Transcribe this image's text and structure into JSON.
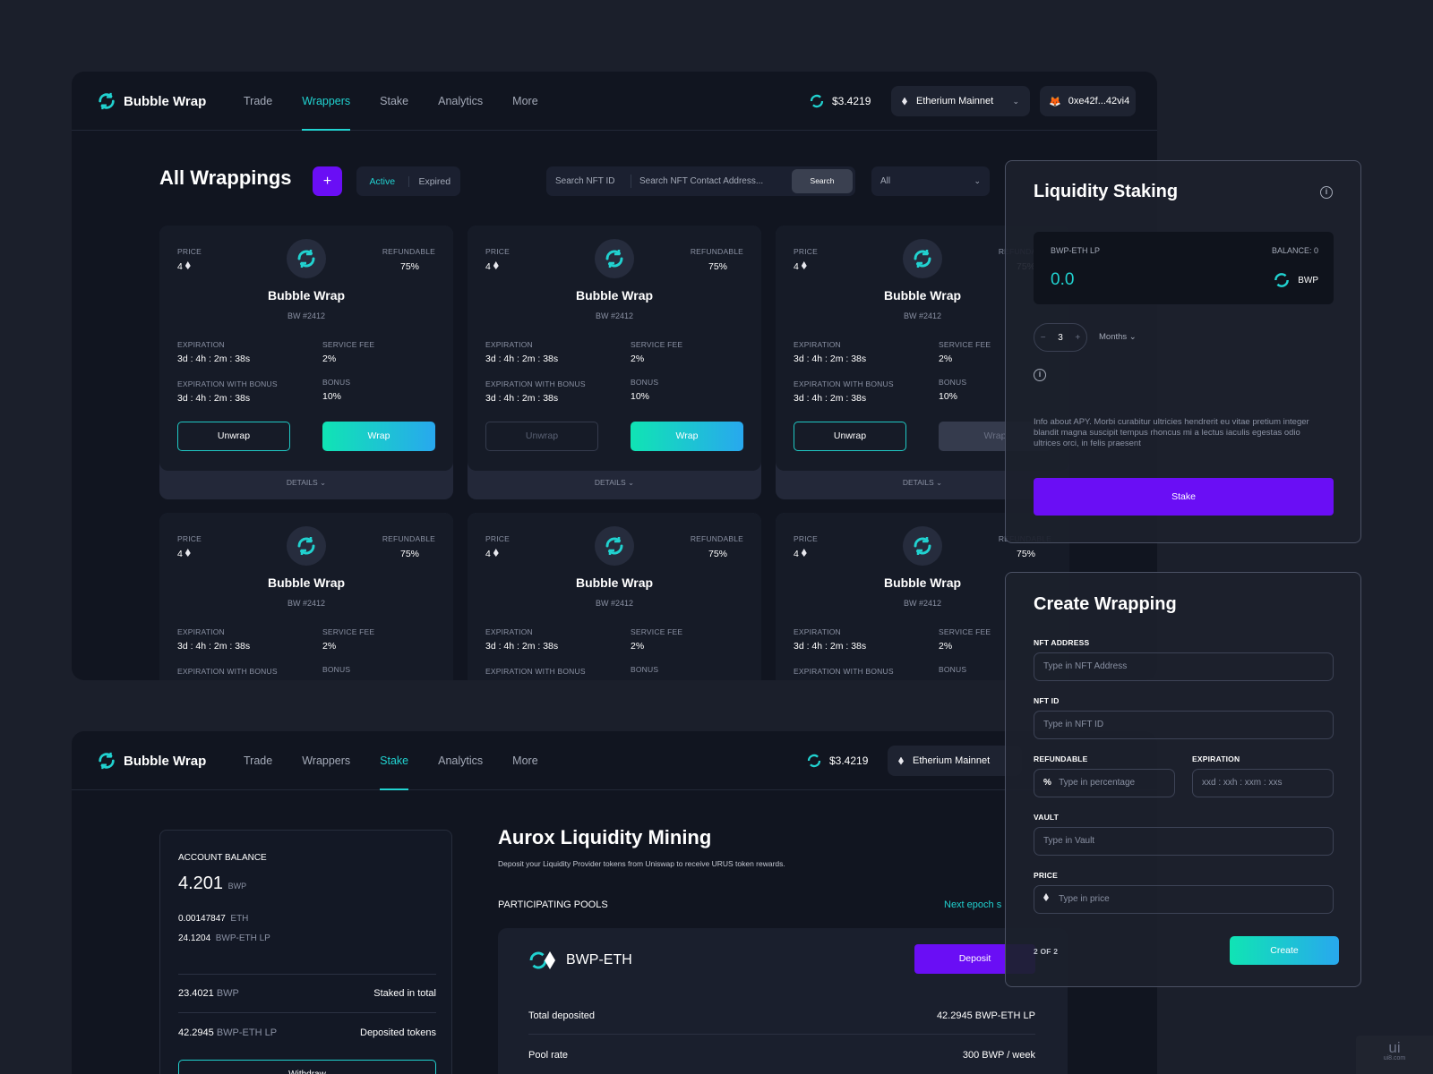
{
  "app": {
    "brand": "Bubble Wrap"
  },
  "nav1": {
    "items": [
      "Trade",
      "Wrappers",
      "Stake",
      "Analytics",
      "More"
    ],
    "active": "Wrappers"
  },
  "nav2": {
    "items": [
      "Trade",
      "Wrappers",
      "Stake",
      "Analytics",
      "More"
    ],
    "active": "Stake"
  },
  "header": {
    "price": "$3.4219",
    "network": "Etherium Mainnet",
    "wallet": "0xe42f...42vi4"
  },
  "wrappings": {
    "title": "All Wrappings",
    "add_label": "+",
    "filter_tabs": [
      "Active",
      "Expired"
    ],
    "search_id_placeholder": "Search NFT ID",
    "search_address_placeholder": "Search NFT Contact Address...",
    "search_button": "Search",
    "select_value": "All"
  },
  "card_labels": {
    "price": "PRICE",
    "refundable": "REFUNDABLE",
    "expiration": "EXPIRATION",
    "service_fee": "SERVICE FEE",
    "expiration_bonus": "EXPIRATION WITH BONUS",
    "bonus": "BONUS",
    "unwrap": "Unwrap",
    "wrap": "Wrap",
    "details": "DETAILS"
  },
  "cards": [
    {
      "name": "Bubble Wrap",
      "id": "BW #2412",
      "price": "4",
      "refundable": "75%",
      "expiration": "3d : 4h : 2m : 38s",
      "service_fee": "2%",
      "expiration_bonus": "3d : 4h : 2m : 38s",
      "bonus": "10%",
      "unwrap_enabled": true,
      "wrap_enabled": true
    },
    {
      "name": "Bubble Wrap",
      "id": "BW #2412",
      "price": "4",
      "refundable": "75%",
      "expiration": "3d : 4h : 2m : 38s",
      "service_fee": "2%",
      "expiration_bonus": "3d : 4h : 2m : 38s",
      "bonus": "10%",
      "unwrap_enabled": false,
      "wrap_enabled": true
    },
    {
      "name": "Bubble Wrap",
      "id": "BW #2412",
      "price": "4",
      "refundable": "75%",
      "expiration": "3d : 4h : 2m : 38s",
      "service_fee": "2%",
      "expiration_bonus": "3d : 4h : 2m : 38s",
      "bonus": "10%",
      "unwrap_enabled": true,
      "wrap_enabled": false
    },
    {
      "name": "Bubble Wrap",
      "id": "BW #2412",
      "price": "4",
      "refundable": "75%",
      "expiration": "3d : 4h : 2m : 38s",
      "service_fee": "2%",
      "expiration_bonus": "",
      "bonus": "",
      "unwrap_enabled": true,
      "wrap_enabled": true
    },
    {
      "name": "Bubble Wrap",
      "id": "BW #2412",
      "price": "4",
      "refundable": "75%",
      "expiration": "3d : 4h : 2m : 38s",
      "service_fee": "2%",
      "expiration_bonus": "",
      "bonus": "",
      "unwrap_enabled": true,
      "wrap_enabled": true
    },
    {
      "name": "Bubble Wrap",
      "id": "BW #2412",
      "price": "4",
      "refundable": "75%",
      "expiration": "3d : 4h : 2m : 38s",
      "service_fee": "2%",
      "expiration_bonus": "",
      "bonus": "",
      "unwrap_enabled": true,
      "wrap_enabled": true
    }
  ],
  "liquidity": {
    "title": "Liquidity Staking",
    "lp_label": "BWP-ETH LP",
    "balance": "BALANCE: 0",
    "amount": "0.0",
    "token": "BWP",
    "duration_value": "3",
    "duration_minus": "−",
    "duration_plus": "+",
    "duration_unit": "Months",
    "apy_info": "Info about APY.  Morbi curabitur ultricies hendrerit eu vitae pretium integer blandit magna suscipit tempus rhoncus mi a lectus iaculis egestas odio ultrices orci, in felis praesent",
    "stake_button": "Stake"
  },
  "create": {
    "title": "Create Wrapping",
    "nft_address_label": "NFT ADDRESS",
    "nft_address_placeholder": "Type in NFT Address",
    "nft_id_label": "NFT ID",
    "nft_id_placeholder": "Type in NFT ID",
    "refundable_label": "REFUNDABLE",
    "refundable_prefix": "%",
    "refundable_placeholder": "Type in percentage",
    "expiration_label": "EXPIRATION",
    "expiration_placeholder": "xxd : xxh : xxm : xxs",
    "vault_label": "VAULT",
    "vault_placeholder": "Type in Vault",
    "price_label": "PRICE",
    "price_placeholder": "Type in price",
    "step": "2 OF 2",
    "create_button": "Create"
  },
  "stake_page": {
    "account_label": "ACCOUNT BALANCE",
    "balance": "4.201",
    "balance_unit": "BWP",
    "eth": "0.00147847",
    "eth_unit": "ETH",
    "lp": "24.1204",
    "lp_unit": "BWP-ETH LP",
    "staked_value": "23.4021",
    "staked_unit": "BWP",
    "staked_label": "Staked in total",
    "deposited_value": "42.2945",
    "deposited_unit": "BWP-ETH LP",
    "deposited_label": "Deposited tokens",
    "withdraw_button": "Withdraw",
    "title": "Aurox Liquidity Mining",
    "subtitle": "Deposit your Liquidity Provider tokens from Uniswap to receive URUS token rewards.",
    "pools_label": "PARTICIPATING POOLS",
    "next_epoch": "Next epoch s",
    "pool_name": "BWP-ETH",
    "deposit_button": "Deposit",
    "total_deposited_label": "Total deposited",
    "total_deposited_value": "42.2945 BWP-ETH LP",
    "pool_rate_label": "Pool rate",
    "pool_rate_value": "300 BWP / week"
  },
  "watermark": {
    "text": "ui",
    "sub": "ui8.com"
  },
  "colors": {
    "accent": "#21d2d0",
    "purple": "#6a0ef5",
    "background": "#1b1f2b",
    "panel": "#111520"
  }
}
